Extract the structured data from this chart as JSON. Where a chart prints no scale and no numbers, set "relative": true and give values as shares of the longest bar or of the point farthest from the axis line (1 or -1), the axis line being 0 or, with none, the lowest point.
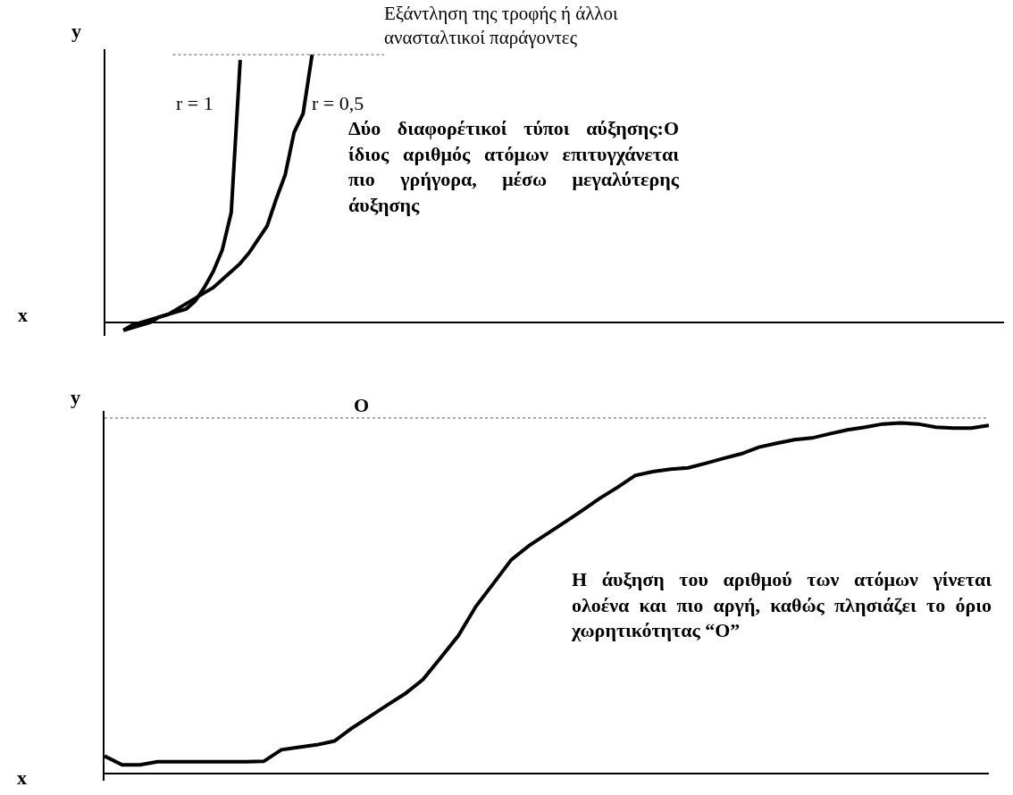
{
  "chart_data": [
    {
      "type": "line",
      "relative": true,
      "xlabel": "x",
      "ylabel": "y",
      "legend": false,
      "grid": false,
      "marker": "none",
      "line_style": "solid",
      "categories": [
        null,
        null,
        null,
        null,
        null,
        null,
        null,
        null,
        null,
        null,
        null,
        null,
        null,
        null,
        null,
        null,
        null,
        null,
        null,
        null,
        null,
        null,
        null,
        null,
        null,
        null,
        null,
        null,
        null,
        null,
        null,
        null,
        null,
        null,
        null,
        null,
        null,
        null,
        null,
        null,
        null,
        null,
        null,
        null,
        null,
        null,
        null,
        null,
        null,
        null,
        null,
        null,
        null,
        null,
        null,
        null,
        null,
        null,
        null,
        null,
        null,
        null,
        null,
        null,
        null,
        null,
        null,
        null,
        null,
        null,
        null,
        null,
        null,
        null,
        null,
        null,
        null,
        null,
        null,
        null,
        null,
        null,
        null,
        null,
        null,
        null,
        null,
        null,
        null,
        null,
        null,
        null,
        null,
        null,
        null,
        null,
        null,
        null,
        null,
        null
      ],
      "series": [
        {
          "name": "r = 1",
          "color": "#000000",
          "values": [
            null,
            null,
            -0.03,
            -0.01,
            0,
            0.01,
            0.02,
            0.03,
            0.04,
            0.05,
            0.08,
            0.13,
            0.19,
            0.27,
            0.41,
            0.98,
            null,
            null,
            null,
            null,
            null,
            null,
            null,
            null,
            null,
            null,
            null,
            null,
            null,
            null,
            null,
            null,
            null,
            null,
            null,
            null,
            null,
            null,
            null,
            null,
            null,
            null,
            null,
            null,
            null,
            null,
            null,
            null,
            null,
            null,
            null,
            null,
            null,
            null,
            null,
            null,
            null,
            null,
            null,
            null,
            null,
            null,
            null,
            null,
            null,
            null,
            null,
            null,
            null,
            null,
            null,
            null,
            null,
            null,
            null,
            null,
            null,
            null,
            null,
            null,
            null,
            null,
            null,
            null,
            null,
            null,
            null,
            null,
            null,
            null,
            null,
            null,
            null,
            null,
            null,
            null,
            null,
            null,
            null,
            null
          ]
        },
        {
          "name": "r = 0,5",
          "color": "#000000",
          "values": [
            null,
            null,
            -0.03,
            -0.02,
            -0.01,
            0,
            0.02,
            0.03,
            0.05,
            0.07,
            0.09,
            0.11,
            0.13,
            0.16,
            0.19,
            0.22,
            0.26,
            0.31,
            0.36,
            0.46,
            0.55,
            0.71,
            0.78,
            1,
            null,
            null,
            null,
            null,
            null,
            null,
            null,
            null,
            null,
            null,
            null,
            null,
            null,
            null,
            null,
            null,
            null,
            null,
            null,
            null,
            null,
            null,
            null,
            null,
            null,
            null,
            null,
            null,
            null,
            null,
            null,
            null,
            null,
            null,
            null,
            null,
            null,
            null,
            null,
            null,
            null,
            null,
            null,
            null,
            null,
            null,
            null,
            null,
            null,
            null,
            null,
            null,
            null,
            null,
            null,
            null,
            null,
            null,
            null,
            null,
            null,
            null,
            null,
            null,
            null,
            null,
            null,
            null,
            null,
            null,
            null,
            null,
            null,
            null,
            null,
            null
          ]
        }
      ],
      "ref_lines": [
        {
          "axis": "y",
          "value": 1,
          "label": "Εξάντληση της τροφής ή άλλοι ανασταλτικοί παράγοντες",
          "color": "#555555",
          "line_style": "dotted"
        }
      ],
      "annotations": [
        "Δύο διαφορέτικοί τύποι αύξησης:Ο ίδιος αριθμός ατόμων επιτυγχάνεται πιο γρήγορα, μέσω μεγαλύτερης άυξησης"
      ]
    },
    {
      "type": "line",
      "relative": true,
      "xlabel": "x",
      "ylabel": "y",
      "legend": false,
      "grid": false,
      "marker": "none",
      "line_style": "solid",
      "categories": [
        null,
        null,
        null,
        null,
        null,
        null,
        null,
        null,
        null,
        null,
        null,
        null,
        null,
        null,
        null,
        null,
        null,
        null,
        null,
        null,
        null,
        null,
        null,
        null,
        null,
        null,
        null,
        null,
        null,
        null,
        null,
        null,
        null,
        null,
        null,
        null,
        null,
        null,
        null,
        null,
        null,
        null,
        null,
        null,
        null,
        null,
        null,
        null,
        null,
        null,
        null
      ],
      "series": [
        {
          "color": "#000000",
          "values": [
            0.05,
            0.025,
            0.025,
            0.034,
            0.034,
            0.034,
            0.034,
            0.034,
            0.034,
            0.035,
            0.068,
            0.075,
            0.082,
            0.093,
            0.13,
            0.163,
            0.196,
            0.228,
            0.268,
            0.33,
            0.393,
            0.477,
            0.543,
            0.61,
            0.65,
            0.683,
            0.716,
            0.75,
            0.785,
            0.816,
            0.85,
            0.861,
            0.868,
            0.872,
            0.885,
            0.899,
            0.912,
            0.931,
            0.942,
            0.952,
            0.957,
            0.969,
            0.98,
            0.988,
            0.997,
            1,
            0.997,
            0.988,
            0.985,
            0.985,
            0.993
          ]
        }
      ],
      "ref_lines": [
        {
          "axis": "y",
          "value": 1.014,
          "label": "O",
          "color": "#555555",
          "line_style": "dotted"
        }
      ],
      "annotations": [
        "Η άυξηση του αριθμού των ατόμων γίνεται ολοένα και  πιο αργή, καθώς πλησιάζει το όριο χωρητικότητας “Ο”"
      ]
    }
  ]
}
